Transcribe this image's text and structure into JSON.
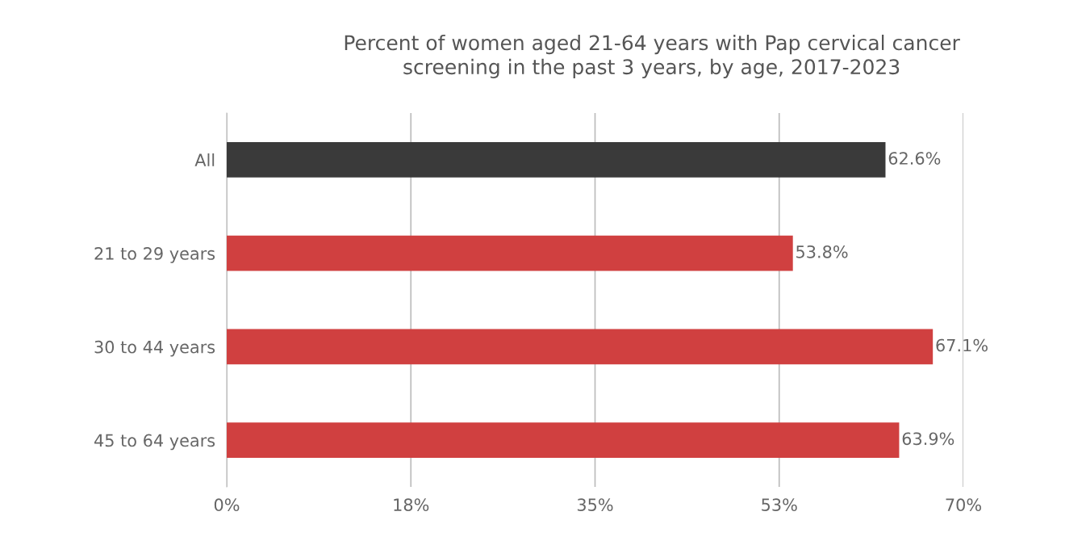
{
  "chart_data": {
    "type": "bar",
    "orientation": "horizontal",
    "title": "Percent of women aged 21-64 years with Pap cervical cancer\nscreening in the past 3 years, by age, 2017-2023",
    "categories": [
      "All",
      "21 to 29 years",
      "30 to 44 years",
      "45 to 64 years"
    ],
    "values": [
      62.6,
      53.8,
      67.1,
      63.9
    ],
    "colors": [
      "#3a3a3a",
      "#d04040",
      "#d04040",
      "#d04040"
    ],
    "value_labels": [
      "62.6%",
      "53.8%",
      "67.1%",
      "63.9%"
    ],
    "xlim": [
      0,
      70
    ],
    "xticks": [
      {
        "value": 0,
        "label": "0%"
      },
      {
        "value": 17.5,
        "label": "18%"
      },
      {
        "value": 35,
        "label": "35%"
      },
      {
        "value": 52.5,
        "label": "53%"
      },
      {
        "value": 70,
        "label": "70%"
      }
    ],
    "grid": "x",
    "legend": false
  }
}
